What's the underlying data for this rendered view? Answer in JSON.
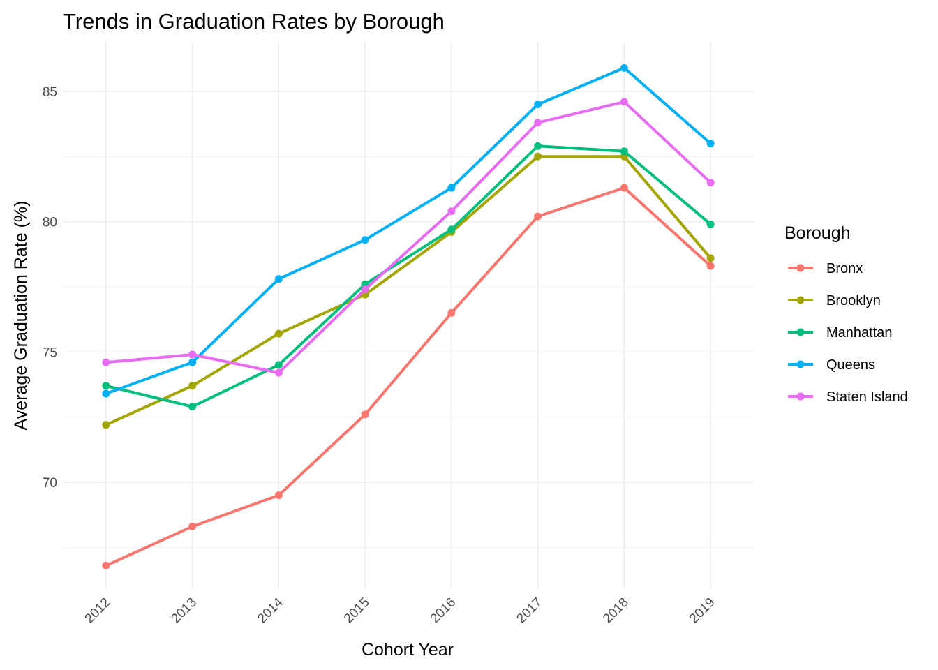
{
  "chart_data": {
    "type": "line",
    "title": "Trends in Graduation Rates by Borough",
    "xlabel": "Cohort Year",
    "ylabel": "Average Graduation Rate (%)",
    "x": [
      "2012",
      "2013",
      "2014",
      "2015",
      "2016",
      "2017",
      "2018",
      "2019"
    ],
    "ylim": [
      65.9,
      86.9
    ],
    "yticks": [
      70,
      75,
      80,
      85
    ],
    "grid": true,
    "legend": {
      "title": "Borough",
      "position": "right"
    },
    "series": [
      {
        "name": "Bronx",
        "color": "#f8766d",
        "values": [
          66.8,
          68.3,
          69.5,
          72.6,
          76.5,
          80.2,
          81.3,
          78.3
        ]
      },
      {
        "name": "Brooklyn",
        "color": "#a3a500",
        "values": [
          72.2,
          73.7,
          75.7,
          77.2,
          79.6,
          82.5,
          82.5,
          78.6
        ]
      },
      {
        "name": "Manhattan",
        "color": "#00bf7d",
        "values": [
          73.7,
          72.9,
          74.5,
          77.6,
          79.7,
          82.9,
          82.7,
          79.9
        ]
      },
      {
        "name": "Queens",
        "color": "#00b0f6",
        "values": [
          73.4,
          74.6,
          77.8,
          79.3,
          81.3,
          84.5,
          85.9,
          83.0
        ]
      },
      {
        "name": "Staten Island",
        "color": "#e76bf3",
        "values": [
          74.6,
          74.9,
          74.2,
          77.4,
          80.4,
          83.8,
          84.6,
          81.5
        ]
      }
    ]
  }
}
